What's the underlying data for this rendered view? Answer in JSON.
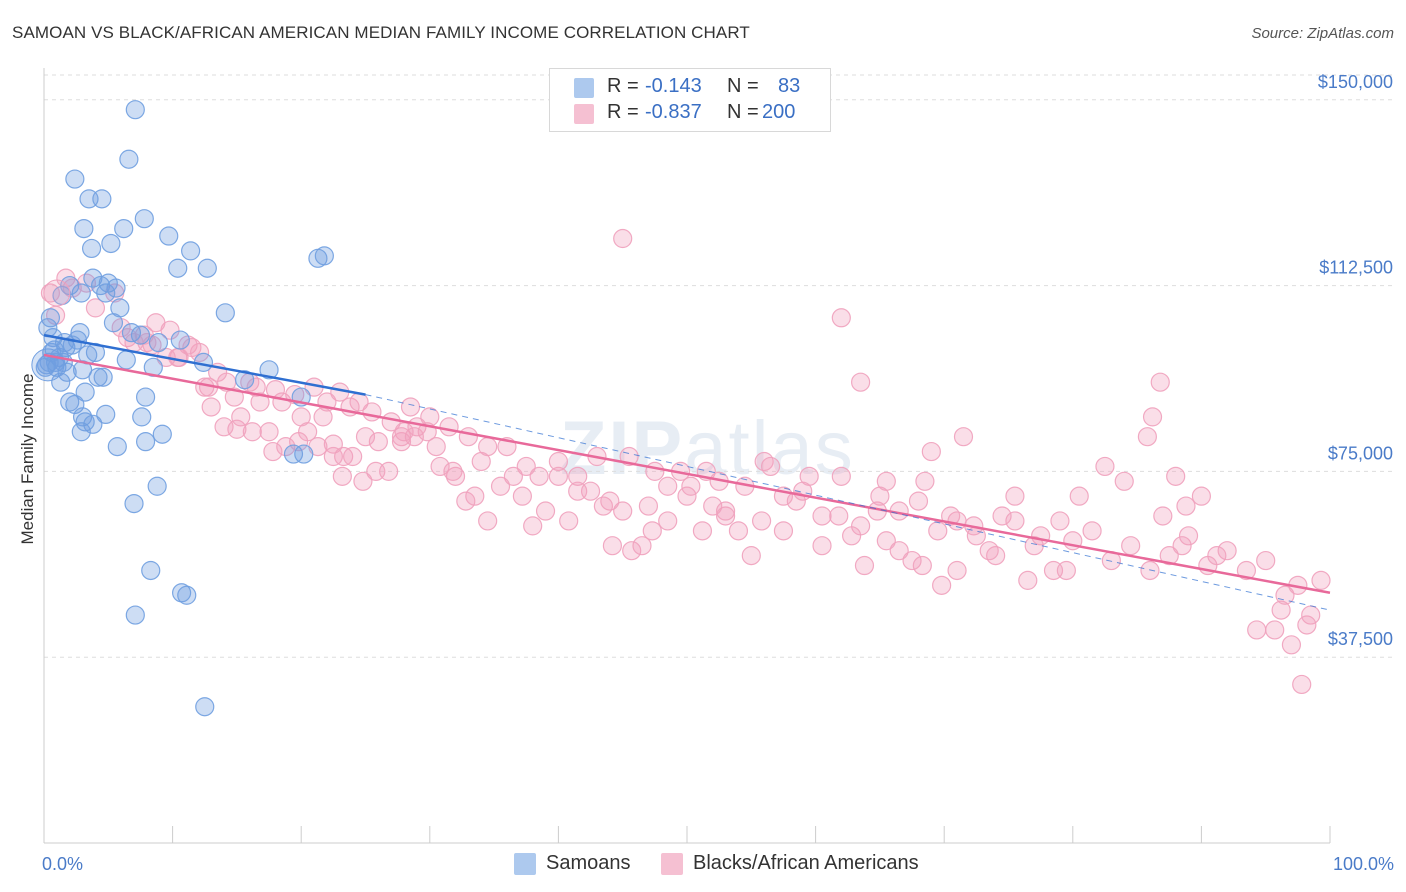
{
  "title": "SAMOAN VS BLACK/AFRICAN AMERICAN MEDIAN FAMILY INCOME CORRELATION CHART",
  "source": "Source: ZipAtlas.com",
  "watermark": {
    "bold": "ZIP",
    "thin": "atlas"
  },
  "legend_top": [
    {
      "r_label": "R =",
      "r_value": "-0.143",
      "n_label": "N =",
      "n_value": "83",
      "color": "#9fc0ec"
    },
    {
      "r_label": "R =",
      "r_value": "-0.837",
      "n_label": "N =",
      "n_value": "200",
      "color": "#f4b6cb"
    }
  ],
  "legend_bottom": [
    {
      "label": "Samoans",
      "color": "#9fc0ec"
    },
    {
      "label": "Blacks/African Americans",
      "color": "#f4b6cb"
    }
  ],
  "chart_data": {
    "type": "scatter",
    "title": "SAMOAN VS BLACK/AFRICAN AMERICAN MEDIAN FAMILY INCOME CORRELATION CHART",
    "xlabel": "",
    "ylabel": "Median Family Income",
    "xlim": [
      0,
      100
    ],
    "ylim": [
      0,
      155000
    ],
    "x_tick_labels": [
      "0.0%",
      "100.0%"
    ],
    "y_ticks": [
      37500,
      75000,
      112500,
      150000
    ],
    "y_tick_labels": [
      "$37,500",
      "$75,000",
      "$112,500",
      "$150,000"
    ],
    "grid": true,
    "legend_position": "top-center",
    "series": [
      {
        "name": "Samoans",
        "color": "#6f9ee0",
        "line_color": "#2f6fd1",
        "trend": {
          "x": [
            0,
            25
          ],
          "y": [
            102500,
            90500
          ]
        },
        "trend_extension": {
          "x": [
            25,
            100
          ],
          "y": [
            90500,
            47000
          ]
        },
        "points": [
          [
            7.1,
            148000
          ],
          [
            6.6,
            138000
          ],
          [
            2.4,
            134000
          ],
          [
            3.5,
            130000
          ],
          [
            4.5,
            130000
          ],
          [
            7.8,
            126000
          ],
          [
            3.1,
            124000
          ],
          [
            6.2,
            124000
          ],
          [
            9.7,
            122500
          ],
          [
            5.2,
            121000
          ],
          [
            3.7,
            120000
          ],
          [
            11.4,
            119500
          ],
          [
            21.3,
            118000
          ],
          [
            21.8,
            118500
          ],
          [
            10.4,
            116000
          ],
          [
            12.7,
            116000
          ],
          [
            3.8,
            114000
          ],
          [
            2.0,
            112500
          ],
          [
            4.4,
            112500
          ],
          [
            4.8,
            111000
          ],
          [
            5.0,
            113000
          ],
          [
            5.6,
            112000
          ],
          [
            2.9,
            111000
          ],
          [
            1.4,
            110500
          ],
          [
            14.1,
            107000
          ],
          [
            0.5,
            106000
          ],
          [
            0.3,
            104000
          ],
          [
            5.4,
            105000
          ],
          [
            2.8,
            103000
          ],
          [
            0.7,
            102000
          ],
          [
            7.5,
            102500
          ],
          [
            10.6,
            101500
          ],
          [
            1.6,
            101000
          ],
          [
            2.2,
            100500
          ],
          [
            0.8,
            99500
          ],
          [
            4.0,
            99000
          ],
          [
            1.2,
            98000
          ],
          [
            6.4,
            97500
          ],
          [
            0.4,
            97000
          ],
          [
            1.5,
            97000
          ],
          [
            0.2,
            96500
          ],
          [
            1.0,
            96000
          ],
          [
            12.4,
            97000
          ],
          [
            8.5,
            96000
          ],
          [
            17.5,
            95500
          ],
          [
            1.8,
            95000
          ],
          [
            3.0,
            95500
          ],
          [
            4.2,
            94000
          ],
          [
            4.6,
            94000
          ],
          [
            1.3,
            93000
          ],
          [
            3.2,
            91000
          ],
          [
            7.9,
            90000
          ],
          [
            20.0,
            90000
          ],
          [
            2.0,
            89000
          ],
          [
            2.4,
            88500
          ],
          [
            4.8,
            86500
          ],
          [
            3.0,
            86000
          ],
          [
            7.6,
            86000
          ],
          [
            3.2,
            85000
          ],
          [
            3.8,
            84500
          ],
          [
            2.9,
            83000
          ],
          [
            9.2,
            82500
          ],
          [
            7.9,
            81000
          ],
          [
            5.7,
            80000
          ],
          [
            19.4,
            78500
          ],
          [
            20.2,
            78500
          ],
          [
            8.8,
            72000
          ],
          [
            7.0,
            68500
          ],
          [
            8.3,
            55000
          ],
          [
            7.1,
            46000
          ],
          [
            10.7,
            50500
          ],
          [
            11.1,
            50000
          ],
          [
            12.5,
            27500
          ],
          [
            0.1,
            96000
          ],
          [
            1.7,
            100000
          ],
          [
            0.6,
            99000
          ],
          [
            2.6,
            101500
          ],
          [
            3.4,
            98500
          ],
          [
            5.9,
            108000
          ],
          [
            6.8,
            103000
          ],
          [
            8.9,
            101000
          ],
          [
            15.6,
            93500
          ],
          [
            0.9,
            97000
          ]
        ]
      },
      {
        "name": "Blacks/African Americans",
        "color": "#f0a1bd",
        "line_color": "#e8699a",
        "trend": {
          "x": [
            0,
            100
          ],
          "y": [
            98500,
            50500
          ]
        },
        "points": [
          [
            1.7,
            114000
          ],
          [
            0.5,
            111000
          ],
          [
            2.2,
            112000
          ],
          [
            3.3,
            113000
          ],
          [
            5.5,
            111000
          ],
          [
            0.9,
            106500
          ],
          [
            4.0,
            108000
          ],
          [
            6.5,
            102000
          ],
          [
            7.8,
            102500
          ],
          [
            8.7,
            105000
          ],
          [
            9.8,
            103500
          ],
          [
            11.2,
            100500
          ],
          [
            8.4,
            100500
          ],
          [
            10.4,
            98000
          ],
          [
            12.1,
            99000
          ],
          [
            13.5,
            95000
          ],
          [
            12.8,
            92000
          ],
          [
            14.2,
            93000
          ],
          [
            16.0,
            93000
          ],
          [
            16.8,
            89000
          ],
          [
            18.0,
            91500
          ],
          [
            19.5,
            90500
          ],
          [
            21.0,
            92000
          ],
          [
            23.0,
            91000
          ],
          [
            24.5,
            89000
          ],
          [
            22.0,
            89000
          ],
          [
            20.0,
            86000
          ],
          [
            21.7,
            86000
          ],
          [
            23.8,
            88000
          ],
          [
            25.5,
            87000
          ],
          [
            27.0,
            85000
          ],
          [
            28.5,
            88000
          ],
          [
            30.0,
            86000
          ],
          [
            31.5,
            84000
          ],
          [
            33.0,
            82000
          ],
          [
            34.5,
            80000
          ],
          [
            29.0,
            84000
          ],
          [
            27.8,
            81000
          ],
          [
            25.0,
            82000
          ],
          [
            22.5,
            80500
          ],
          [
            17.5,
            83000
          ],
          [
            15.0,
            83500
          ],
          [
            13.0,
            88000
          ],
          [
            14.8,
            90000
          ],
          [
            16.5,
            92000
          ],
          [
            18.5,
            89000
          ],
          [
            20.5,
            83000
          ],
          [
            23.3,
            78000
          ],
          [
            26.0,
            81000
          ],
          [
            28.0,
            83000
          ],
          [
            30.5,
            80000
          ],
          [
            32.0,
            74000
          ],
          [
            34.0,
            77000
          ],
          [
            36.0,
            80000
          ],
          [
            37.5,
            76000
          ],
          [
            38.5,
            74000
          ],
          [
            40.0,
            77000
          ],
          [
            41.5,
            74000
          ],
          [
            43.0,
            78000
          ],
          [
            44.0,
            69000
          ],
          [
            45.5,
            78000
          ],
          [
            47.0,
            68000
          ],
          [
            48.5,
            72000
          ],
          [
            50.0,
            70000
          ],
          [
            51.5,
            75000
          ],
          [
            53.0,
            67000
          ],
          [
            54.5,
            72000
          ],
          [
            56.0,
            77000
          ],
          [
            57.5,
            70000
          ],
          [
            59.0,
            71000
          ],
          [
            60.5,
            66000
          ],
          [
            62.0,
            74000
          ],
          [
            63.5,
            64000
          ],
          [
            65.0,
            70000
          ],
          [
            66.5,
            67000
          ],
          [
            68.0,
            69000
          ],
          [
            69.5,
            63000
          ],
          [
            71.0,
            65000
          ],
          [
            72.5,
            62000
          ],
          [
            74.0,
            58000
          ],
          [
            75.5,
            65000
          ],
          [
            77.0,
            60000
          ],
          [
            78.5,
            55000
          ],
          [
            80.0,
            61000
          ],
          [
            81.5,
            63000
          ],
          [
            83.0,
            57000
          ],
          [
            84.5,
            60000
          ],
          [
            86.0,
            55000
          ],
          [
            87.5,
            58000
          ],
          [
            89.0,
            62000
          ],
          [
            90.5,
            56000
          ],
          [
            92.0,
            59000
          ],
          [
            93.5,
            55000
          ],
          [
            95.0,
            57000
          ],
          [
            96.5,
            50000
          ],
          [
            97.5,
            52000
          ],
          [
            98.5,
            46000
          ],
          [
            99.3,
            53000
          ],
          [
            97.0,
            40000
          ],
          [
            95.7,
            43000
          ],
          [
            94.3,
            43000
          ],
          [
            96.2,
            47000
          ],
          [
            97.8,
            32000
          ],
          [
            98.2,
            44000
          ],
          [
            91.2,
            58000
          ],
          [
            88.5,
            60000
          ],
          [
            87.0,
            66000
          ],
          [
            86.2,
            86000
          ],
          [
            86.8,
            93000
          ],
          [
            85.8,
            82000
          ],
          [
            88.0,
            74000
          ],
          [
            88.8,
            68000
          ],
          [
            90.0,
            70000
          ],
          [
            84.0,
            73000
          ],
          [
            82.5,
            76000
          ],
          [
            80.5,
            70000
          ],
          [
            79.5,
            55000
          ],
          [
            77.5,
            62000
          ],
          [
            76.5,
            53000
          ],
          [
            75.5,
            70000
          ],
          [
            74.5,
            66000
          ],
          [
            73.5,
            59000
          ],
          [
            72.3,
            64000
          ],
          [
            71.5,
            82000
          ],
          [
            70.5,
            66000
          ],
          [
            69.0,
            79000
          ],
          [
            68.5,
            73000
          ],
          [
            67.5,
            57000
          ],
          [
            66.5,
            59000
          ],
          [
            65.5,
            61000
          ],
          [
            64.8,
            67000
          ],
          [
            63.8,
            56000
          ],
          [
            62.8,
            62000
          ],
          [
            61.8,
            66000
          ],
          [
            60.5,
            60000
          ],
          [
            59.5,
            74000
          ],
          [
            58.5,
            69000
          ],
          [
            57.5,
            63000
          ],
          [
            56.5,
            76000
          ],
          [
            55.8,
            65000
          ],
          [
            55.0,
            58000
          ],
          [
            54.0,
            63000
          ],
          [
            53.0,
            66000
          ],
          [
            52.0,
            68000
          ],
          [
            51.2,
            63000
          ],
          [
            50.3,
            72000
          ],
          [
            49.5,
            75000
          ],
          [
            48.5,
            65000
          ],
          [
            47.3,
            63000
          ],
          [
            46.5,
            60000
          ],
          [
            45.7,
            59000
          ],
          [
            45.0,
            67000
          ],
          [
            44.2,
            60000
          ],
          [
            43.5,
            68000
          ],
          [
            42.5,
            71000
          ],
          [
            41.5,
            71000
          ],
          [
            40.8,
            65000
          ],
          [
            40.0,
            74000
          ],
          [
            39.0,
            67000
          ],
          [
            38.0,
            64000
          ],
          [
            37.2,
            70000
          ],
          [
            36.5,
            74000
          ],
          [
            35.5,
            72000
          ],
          [
            34.5,
            65000
          ],
          [
            33.5,
            70000
          ],
          [
            32.8,
            69000
          ],
          [
            31.8,
            75000
          ],
          [
            30.8,
            76000
          ],
          [
            29.8,
            83000
          ],
          [
            28.8,
            82000
          ],
          [
            27.8,
            82000
          ],
          [
            26.8,
            75000
          ],
          [
            25.8,
            75000
          ],
          [
            24.8,
            73000
          ],
          [
            24.0,
            78000
          ],
          [
            23.2,
            74000
          ],
          [
            22.5,
            78000
          ],
          [
            21.3,
            80000
          ],
          [
            19.8,
            81000
          ],
          [
            18.8,
            80000
          ],
          [
            17.8,
            79000
          ],
          [
            16.2,
            83000
          ],
          [
            15.3,
            86000
          ],
          [
            14.0,
            84000
          ],
          [
            12.5,
            92000
          ],
          [
            11.5,
            100000
          ],
          [
            10.5,
            98000
          ],
          [
            9.5,
            98000
          ],
          [
            8.0,
            101000
          ],
          [
            7.0,
            101000
          ],
          [
            6.0,
            104000
          ],
          [
            45.0,
            122000
          ],
          [
            62.0,
            106000
          ],
          [
            63.5,
            93000
          ],
          [
            79.0,
            65000
          ],
          [
            65.5,
            73000
          ],
          [
            47.5,
            75000
          ],
          [
            52.5,
            73000
          ],
          [
            68.3,
            56000
          ],
          [
            71.0,
            55000
          ],
          [
            69.8,
            52000
          ]
        ]
      }
    ]
  }
}
